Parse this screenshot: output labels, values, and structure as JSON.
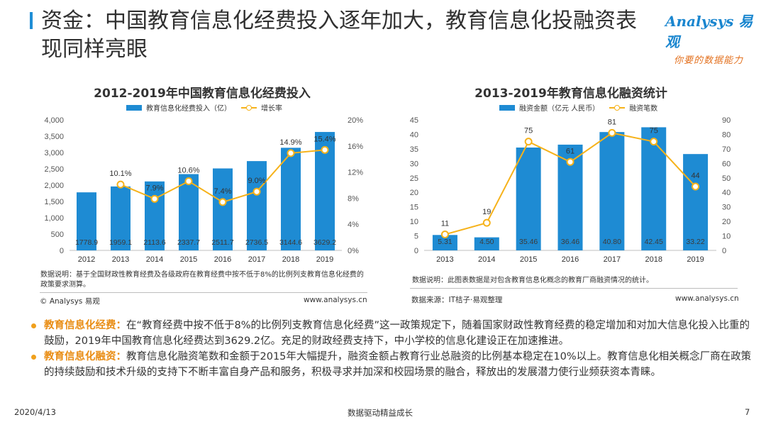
{
  "header": {
    "title": "资金：中国教育信息化经费投入逐年加大，教育信息化投融资表现同样亮眼",
    "logo_text": "Analysys 易观",
    "logo_slogan": "你要的数据能力"
  },
  "left_chart": {
    "title_text": "2012-2019年中国教育信息化经费投入",
    "note": "数据说明：基于全国财政性教育经费及各级政府在教育经费中按不低于8%的比例列支教育信息化经费的政策要求测算。",
    "source_left": "© Analysys 易观",
    "source_right": "www.analysys.cn"
  },
  "right_chart": {
    "title_text": "2013-2019年教育信息化融资统计",
    "note": "数据说明：此图表数据是对包含教育信息化概念的教育厂商融资情况的统计。",
    "source_left": "数据来源：IT桔子·易观整理",
    "source_right": "www.analysys.cn"
  },
  "chart_data": [
    {
      "type": "bar",
      "title": "2012-2019年中国教育信息化经费投入",
      "categories": [
        "2012",
        "2013",
        "2014",
        "2015",
        "2016",
        "2017",
        "2018",
        "2019"
      ],
      "series": [
        {
          "name": "教育信息化经费投入（亿）",
          "type": "bar",
          "axis": "left",
          "values": [
            1778.9,
            1959.1,
            2113.6,
            2337.7,
            2511.7,
            2736.5,
            3144.6,
            3629.2
          ],
          "labels": [
            "1778.9",
            "1959.1",
            "2113.6",
            "2337.7",
            "2511.7",
            "2736.5",
            "3144.6",
            "3629.2"
          ]
        },
        {
          "name": "增长率",
          "type": "line",
          "axis": "right",
          "values": [
            null,
            10.1,
            7.9,
            10.6,
            7.4,
            9.0,
            14.9,
            15.4
          ],
          "labels": [
            "",
            "10.1%",
            "7.9%",
            "10.6%",
            "7.4%",
            "9.0%",
            "14.9%",
            "15.4%"
          ]
        }
      ],
      "y_left": {
        "min": 0,
        "max": 4000,
        "ticks": [
          "0",
          "500",
          "1,000",
          "1,500",
          "2,000",
          "2,500",
          "3,000",
          "3,500",
          "4,000"
        ]
      },
      "y_right": {
        "min": 0,
        "max": 20,
        "ticks": [
          "0%",
          "4%",
          "8%",
          "12%",
          "16%",
          "20%"
        ]
      },
      "colors": {
        "bar": "#1e8bd3",
        "line": "#f6b21a"
      }
    },
    {
      "type": "bar",
      "title": "2013-2019年教育信息化融资统计",
      "categories": [
        "2013",
        "2014",
        "2015",
        "2016",
        "2017",
        "2018",
        "2019"
      ],
      "series": [
        {
          "name": "融资金额（亿元 人民币）",
          "type": "bar",
          "axis": "left",
          "values": [
            5.31,
            4.5,
            35.46,
            36.46,
            40.8,
            42.45,
            33.22
          ],
          "labels": [
            "5.31",
            "4.50",
            "35.46",
            "36.46",
            "40.80",
            "42.45",
            "33.22"
          ]
        },
        {
          "name": "融资笔数",
          "type": "line",
          "axis": "right",
          "values": [
            11,
            19,
            75,
            61,
            81,
            75,
            44
          ],
          "labels": [
            "11",
            "19",
            "75",
            "61",
            "81",
            "75",
            "44"
          ]
        }
      ],
      "y_left": {
        "min": 0,
        "max": 45,
        "ticks": [
          "0",
          "5",
          "10",
          "15",
          "20",
          "25",
          "30",
          "35",
          "40",
          "45"
        ]
      },
      "y_right": {
        "min": 0,
        "max": 90,
        "ticks": [
          "0",
          "10",
          "20",
          "30",
          "40",
          "50",
          "60",
          "70",
          "80",
          "90"
        ]
      },
      "colors": {
        "bar": "#1e8bd3",
        "line": "#f6b21a"
      }
    }
  ],
  "bullets": [
    {
      "head": "教育信息化经费：",
      "text": "在“教育经费中按不低于8%的比例列支教育信息化经费”这一政策规定下，随着国家财政性教育经费的稳定增加和对加大信息化投入比重的鼓励，2019年中国教育信息化经费达到3629.2亿。充足的财政经费支持下，中小学校的信息化建设正在加速推进。"
    },
    {
      "head": "教育信息化融资：",
      "text": "教育信息化融资笔数和金额于2015年大幅提升，融资金额占教育行业总融资的比例基本稳定在10%以上。教育信息化相关概念厂商在政策的持续鼓励和技术升级的支持下不断丰富自身产品和服务，积极寻求并加深和校园场景的融合，释放出的发展潜力使行业频获资本青睐。"
    }
  ],
  "footer": {
    "date": "2020/4/13",
    "center": "数据驱动精益成长",
    "page": "7"
  }
}
